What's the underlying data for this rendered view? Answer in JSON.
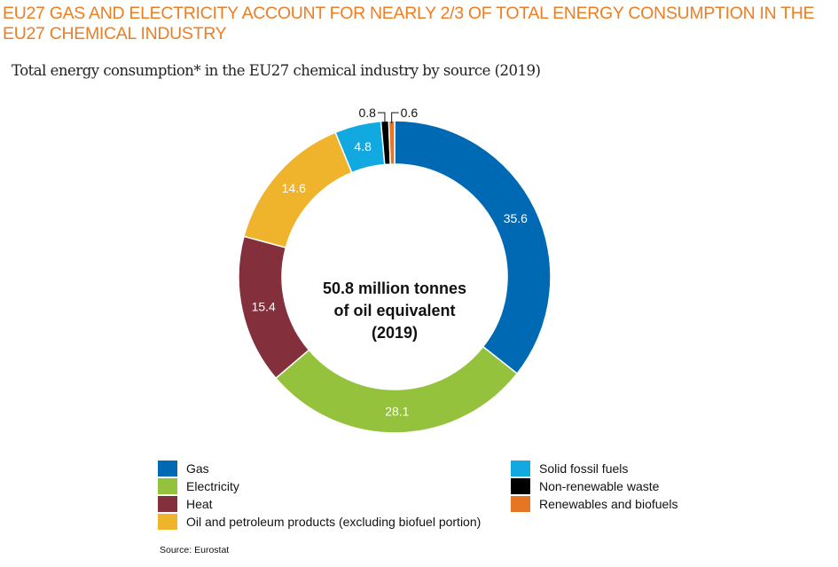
{
  "header": {
    "title": "EU27 GAS AND ELECTRICITY ACCOUNT FOR NEARLY 2/3 OF TOTAL ENERGY CONSUMPTION IN THE EU27 CHEMICAL INDUSTRY",
    "subtitle": "Total energy consumption* in the EU27 chemical industry by source (2019)"
  },
  "center_label": {
    "line1": "50.8 million tonnes",
    "line2": "of oil equivalent",
    "line3": "(2019)"
  },
  "source": "Source: Eurostat",
  "chart_data": {
    "type": "pie",
    "subtype": "donut",
    "title": "Total energy consumption* in the EU27 chemical industry by source (2019)",
    "unit": "%",
    "total_label": "50.8 million tonnes of oil equivalent (2019)",
    "start": "top",
    "direction": "clockwise",
    "categories": [
      "Gas",
      "Electricity",
      "Heat",
      "Oil and petroleum products (excluding biofuel portion)",
      "Solid fossil fuels",
      "Non-renewable waste",
      "Renewables and biofuels"
    ],
    "values": [
      35.6,
      28.1,
      15.4,
      14.6,
      4.8,
      0.8,
      0.6
    ],
    "labels": [
      "35.6",
      "28.1",
      "15.4",
      "14.6",
      "4.8",
      "0.8",
      "0.6"
    ],
    "label_placement": [
      "inside",
      "inside",
      "inside",
      "inside",
      "inside",
      "outside-callout",
      "outside-callout"
    ],
    "colors": [
      "#0069b4",
      "#95c23d",
      "#84303c",
      "#f0b42c",
      "#12a8e0",
      "#000000",
      "#e67524"
    ],
    "legend": {
      "columns": [
        [
          "Gas",
          "Electricity",
          "Heat",
          "Oil and petroleum products (excluding biofuel portion)"
        ],
        [
          "Solid fossil fuels",
          "Non-renewable waste",
          "Renewables and biofuels"
        ]
      ],
      "placement": "bottom"
    }
  }
}
